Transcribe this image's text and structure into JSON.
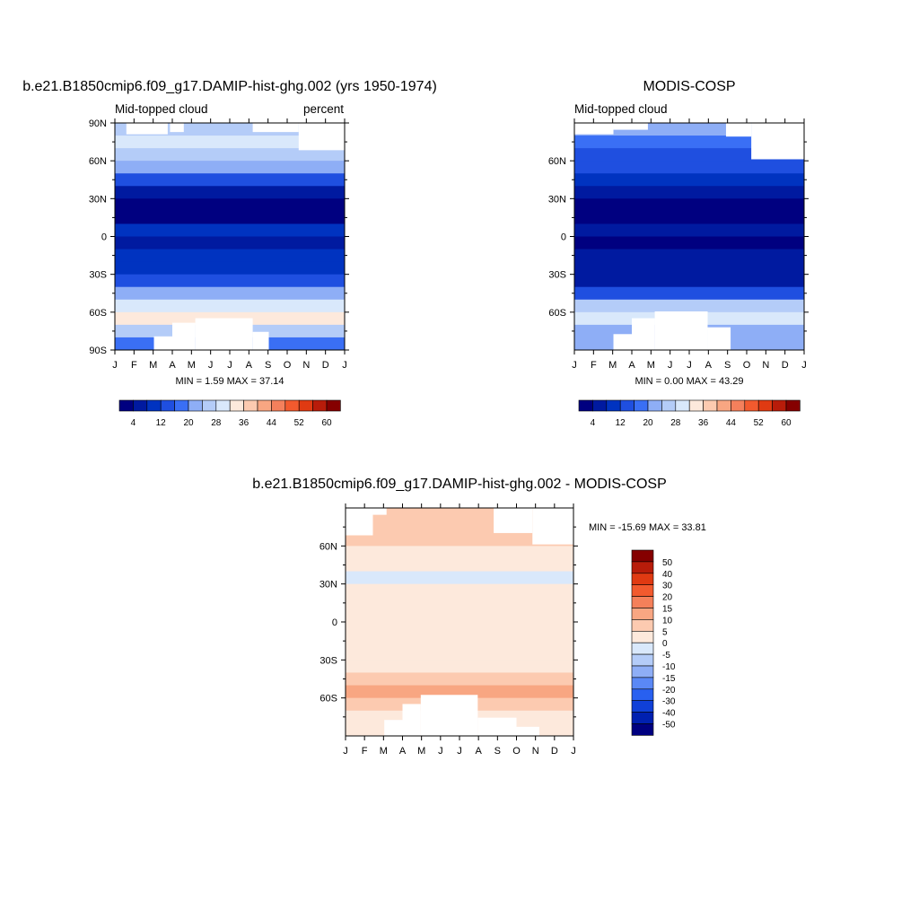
{
  "colors": {
    "abs_levels": [
      "#000080",
      "#001aa0",
      "#0033c0",
      "#1f4fe0",
      "#3a6ff5",
      "#8eaef6",
      "#b4ccf8",
      "#d9e8fb",
      "#fde9dc",
      "#fccab0",
      "#f8a682",
      "#f4805c",
      "#f25a2e",
      "#e03a12",
      "#b81c0a",
      "#850000"
    ],
    "diff_levels": [
      "#000080",
      "#0020b0",
      "#1040d8",
      "#2860f0",
      "#5a88f5",
      "#8eaef6",
      "#b4ccf8",
      "#d9e8fb",
      "#fde9dc",
      "#fccab0",
      "#f8a682",
      "#f5805a",
      "#f25a2e",
      "#e03a12",
      "#b81c0a",
      "#850000"
    ]
  },
  "chart_data": [
    {
      "type": "heatmap",
      "title": "b.e21.B1850cmip6.f09_g17.DAMIP-hist-ghg.002 (yrs 1950-1974)",
      "left_label": "Mid-topped cloud",
      "right_label": "percent",
      "x_ticks": [
        "J",
        "F",
        "M",
        "A",
        "M",
        "J",
        "J",
        "A",
        "S",
        "O",
        "N",
        "D",
        "J"
      ],
      "y_ticks": [
        "90N",
        "60N",
        "30N",
        "0",
        "30S",
        "60S",
        "90S"
      ],
      "stats": "MIN =   1.59 MAX =  37.14",
      "colorbar_labels": [
        "4",
        "12",
        "20",
        "28",
        "36",
        "44",
        "52",
        "60"
      ],
      "lat_profile": [
        {
          "lat": 85,
          "value": 26
        },
        {
          "lat": 75,
          "value": 30
        },
        {
          "lat": 65,
          "value": 27
        },
        {
          "lat": 55,
          "value": 20
        },
        {
          "lat": 45,
          "value": 12
        },
        {
          "lat": 35,
          "value": 6
        },
        {
          "lat": 25,
          "value": 3
        },
        {
          "lat": 15,
          "value": 3
        },
        {
          "lat": 5,
          "value": 8
        },
        {
          "lat": -5,
          "value": 5
        },
        {
          "lat": -15,
          "value": 8
        },
        {
          "lat": -25,
          "value": 8
        },
        {
          "lat": -35,
          "value": 12
        },
        {
          "lat": -45,
          "value": 20
        },
        {
          "lat": -55,
          "value": 30
        },
        {
          "lat": -65,
          "value": 34
        },
        {
          "lat": -75,
          "value": 26
        },
        {
          "lat": -85,
          "value": 18
        }
      ]
    },
    {
      "type": "heatmap",
      "title": "MODIS-COSP",
      "left_label": "Mid-topped cloud",
      "right_label": "",
      "x_ticks": [
        "J",
        "F",
        "M",
        "A",
        "M",
        "J",
        "J",
        "A",
        "S",
        "O",
        "N",
        "D",
        "J"
      ],
      "y_ticks": [
        "60N",
        "30N",
        "0",
        "30S",
        "60S"
      ],
      "stats": "MIN =   0.00 MAX =  43.29",
      "colorbar_labels": [
        "4",
        "12",
        "20",
        "28",
        "36",
        "44",
        "52",
        "60"
      ],
      "lat_profile": [
        {
          "lat": 85,
          "value": 22
        },
        {
          "lat": 75,
          "value": 18
        },
        {
          "lat": 65,
          "value": 14
        },
        {
          "lat": 55,
          "value": 12
        },
        {
          "lat": 45,
          "value": 10
        },
        {
          "lat": 35,
          "value": 7
        },
        {
          "lat": 25,
          "value": 3
        },
        {
          "lat": 15,
          "value": 2
        },
        {
          "lat": 5,
          "value": 4
        },
        {
          "lat": -5,
          "value": 3
        },
        {
          "lat": -15,
          "value": 5
        },
        {
          "lat": -25,
          "value": 6
        },
        {
          "lat": -35,
          "value": 7
        },
        {
          "lat": -45,
          "value": 14
        },
        {
          "lat": -55,
          "value": 24
        },
        {
          "lat": -65,
          "value": 30
        },
        {
          "lat": -75,
          "value": 22
        },
        {
          "lat": -85,
          "value": 20
        }
      ]
    },
    {
      "type": "heatmap",
      "title": "b.e21.B1850cmip6.f09_g17.DAMIP-hist-ghg.002 - MODIS-COSP",
      "x_ticks": [
        "J",
        "F",
        "M",
        "A",
        "M",
        "J",
        "J",
        "A",
        "S",
        "O",
        "N",
        "D",
        "J"
      ],
      "y_ticks": [
        "60N",
        "30N",
        "0",
        "30S",
        "60S"
      ],
      "stats": "MIN = -15.69 MAX =  33.81",
      "colorbar_labels": [
        "50",
        "40",
        "30",
        "20",
        "15",
        "10",
        "5",
        "0",
        "-5",
        "-10",
        "-15",
        "-20",
        "-30",
        "-40",
        "-50"
      ],
      "lat_profile": [
        {
          "lat": 85,
          "value": 6
        },
        {
          "lat": 75,
          "value": 8
        },
        {
          "lat": 65,
          "value": 7
        },
        {
          "lat": 55,
          "value": 4
        },
        {
          "lat": 45,
          "value": 1
        },
        {
          "lat": 35,
          "value": -2
        },
        {
          "lat": 25,
          "value": 1
        },
        {
          "lat": 15,
          "value": 2
        },
        {
          "lat": 5,
          "value": 2
        },
        {
          "lat": -5,
          "value": 2
        },
        {
          "lat": -15,
          "value": 1
        },
        {
          "lat": -25,
          "value": 2
        },
        {
          "lat": -35,
          "value": 3
        },
        {
          "lat": -45,
          "value": 8
        },
        {
          "lat": -55,
          "value": 14
        },
        {
          "lat": -65,
          "value": 6
        },
        {
          "lat": -75,
          "value": 3
        },
        {
          "lat": -85,
          "value": 3
        }
      ]
    }
  ]
}
